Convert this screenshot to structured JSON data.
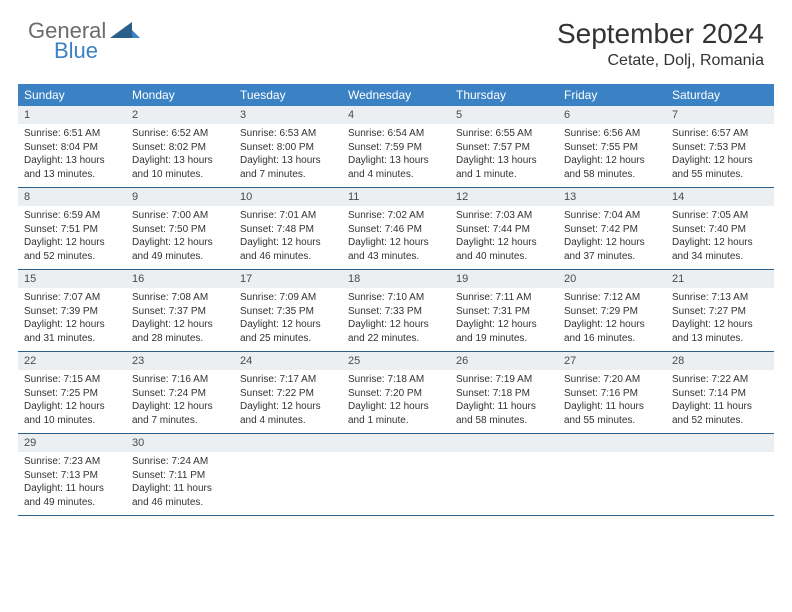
{
  "logo": {
    "text1": "General",
    "text2": "Blue"
  },
  "title": "September 2024",
  "location": "Cetate, Dolj, Romania",
  "colors": {
    "header_bg": "#3b82c4",
    "header_text": "#ffffff",
    "daynum_bg": "#eceff1",
    "border": "#2a5f8a",
    "text": "#333333",
    "logo_gray": "#6b6b6b",
    "logo_blue": "#3b82c4"
  },
  "typography": {
    "title_fontsize": 28,
    "location_fontsize": 16,
    "dayheader_fontsize": 12,
    "daynum_fontsize": 11,
    "body_fontsize": 10
  },
  "day_headers": [
    "Sunday",
    "Monday",
    "Tuesday",
    "Wednesday",
    "Thursday",
    "Friday",
    "Saturday"
  ],
  "weeks": [
    [
      {
        "n": "1",
        "sr": "Sunrise: 6:51 AM",
        "ss": "Sunset: 8:04 PM",
        "dl": "Daylight: 13 hours and 13 minutes."
      },
      {
        "n": "2",
        "sr": "Sunrise: 6:52 AM",
        "ss": "Sunset: 8:02 PM",
        "dl": "Daylight: 13 hours and 10 minutes."
      },
      {
        "n": "3",
        "sr": "Sunrise: 6:53 AM",
        "ss": "Sunset: 8:00 PM",
        "dl": "Daylight: 13 hours and 7 minutes."
      },
      {
        "n": "4",
        "sr": "Sunrise: 6:54 AM",
        "ss": "Sunset: 7:59 PM",
        "dl": "Daylight: 13 hours and 4 minutes."
      },
      {
        "n": "5",
        "sr": "Sunrise: 6:55 AM",
        "ss": "Sunset: 7:57 PM",
        "dl": "Daylight: 13 hours and 1 minute."
      },
      {
        "n": "6",
        "sr": "Sunrise: 6:56 AM",
        "ss": "Sunset: 7:55 PM",
        "dl": "Daylight: 12 hours and 58 minutes."
      },
      {
        "n": "7",
        "sr": "Sunrise: 6:57 AM",
        "ss": "Sunset: 7:53 PM",
        "dl": "Daylight: 12 hours and 55 minutes."
      }
    ],
    [
      {
        "n": "8",
        "sr": "Sunrise: 6:59 AM",
        "ss": "Sunset: 7:51 PM",
        "dl": "Daylight: 12 hours and 52 minutes."
      },
      {
        "n": "9",
        "sr": "Sunrise: 7:00 AM",
        "ss": "Sunset: 7:50 PM",
        "dl": "Daylight: 12 hours and 49 minutes."
      },
      {
        "n": "10",
        "sr": "Sunrise: 7:01 AM",
        "ss": "Sunset: 7:48 PM",
        "dl": "Daylight: 12 hours and 46 minutes."
      },
      {
        "n": "11",
        "sr": "Sunrise: 7:02 AM",
        "ss": "Sunset: 7:46 PM",
        "dl": "Daylight: 12 hours and 43 minutes."
      },
      {
        "n": "12",
        "sr": "Sunrise: 7:03 AM",
        "ss": "Sunset: 7:44 PM",
        "dl": "Daylight: 12 hours and 40 minutes."
      },
      {
        "n": "13",
        "sr": "Sunrise: 7:04 AM",
        "ss": "Sunset: 7:42 PM",
        "dl": "Daylight: 12 hours and 37 minutes."
      },
      {
        "n": "14",
        "sr": "Sunrise: 7:05 AM",
        "ss": "Sunset: 7:40 PM",
        "dl": "Daylight: 12 hours and 34 minutes."
      }
    ],
    [
      {
        "n": "15",
        "sr": "Sunrise: 7:07 AM",
        "ss": "Sunset: 7:39 PM",
        "dl": "Daylight: 12 hours and 31 minutes."
      },
      {
        "n": "16",
        "sr": "Sunrise: 7:08 AM",
        "ss": "Sunset: 7:37 PM",
        "dl": "Daylight: 12 hours and 28 minutes."
      },
      {
        "n": "17",
        "sr": "Sunrise: 7:09 AM",
        "ss": "Sunset: 7:35 PM",
        "dl": "Daylight: 12 hours and 25 minutes."
      },
      {
        "n": "18",
        "sr": "Sunrise: 7:10 AM",
        "ss": "Sunset: 7:33 PM",
        "dl": "Daylight: 12 hours and 22 minutes."
      },
      {
        "n": "19",
        "sr": "Sunrise: 7:11 AM",
        "ss": "Sunset: 7:31 PM",
        "dl": "Daylight: 12 hours and 19 minutes."
      },
      {
        "n": "20",
        "sr": "Sunrise: 7:12 AM",
        "ss": "Sunset: 7:29 PM",
        "dl": "Daylight: 12 hours and 16 minutes."
      },
      {
        "n": "21",
        "sr": "Sunrise: 7:13 AM",
        "ss": "Sunset: 7:27 PM",
        "dl": "Daylight: 12 hours and 13 minutes."
      }
    ],
    [
      {
        "n": "22",
        "sr": "Sunrise: 7:15 AM",
        "ss": "Sunset: 7:25 PM",
        "dl": "Daylight: 12 hours and 10 minutes."
      },
      {
        "n": "23",
        "sr": "Sunrise: 7:16 AM",
        "ss": "Sunset: 7:24 PM",
        "dl": "Daylight: 12 hours and 7 minutes."
      },
      {
        "n": "24",
        "sr": "Sunrise: 7:17 AM",
        "ss": "Sunset: 7:22 PM",
        "dl": "Daylight: 12 hours and 4 minutes."
      },
      {
        "n": "25",
        "sr": "Sunrise: 7:18 AM",
        "ss": "Sunset: 7:20 PM",
        "dl": "Daylight: 12 hours and 1 minute."
      },
      {
        "n": "26",
        "sr": "Sunrise: 7:19 AM",
        "ss": "Sunset: 7:18 PM",
        "dl": "Daylight: 11 hours and 58 minutes."
      },
      {
        "n": "27",
        "sr": "Sunrise: 7:20 AM",
        "ss": "Sunset: 7:16 PM",
        "dl": "Daylight: 11 hours and 55 minutes."
      },
      {
        "n": "28",
        "sr": "Sunrise: 7:22 AM",
        "ss": "Sunset: 7:14 PM",
        "dl": "Daylight: 11 hours and 52 minutes."
      }
    ],
    [
      {
        "n": "29",
        "sr": "Sunrise: 7:23 AM",
        "ss": "Sunset: 7:13 PM",
        "dl": "Daylight: 11 hours and 49 minutes."
      },
      {
        "n": "30",
        "sr": "Sunrise: 7:24 AM",
        "ss": "Sunset: 7:11 PM",
        "dl": "Daylight: 11 hours and 46 minutes."
      },
      null,
      null,
      null,
      null,
      null
    ]
  ]
}
